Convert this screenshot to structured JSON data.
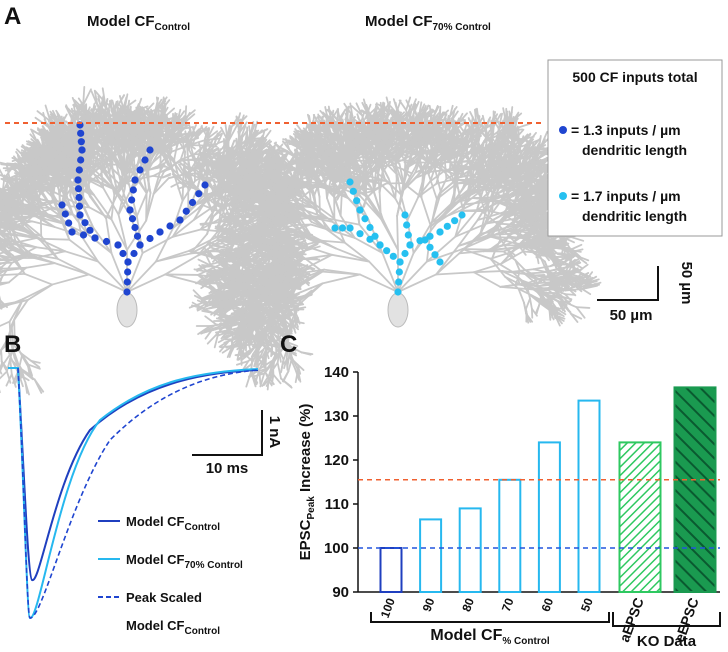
{
  "panel_a": {
    "label": "A",
    "cells": [
      {
        "name": "Model CF",
        "sub": "Control"
      },
      {
        "name": "Model CF",
        "sub": "70% Control"
      }
    ],
    "legend": {
      "title": "500 CF inputs total",
      "items": [
        {
          "line1": "= 1.3 inputs / µm",
          "line2": "dendritic length",
          "color": "#1f45d0"
        },
        {
          "line1": "= 1.7 inputs / µm",
          "line2": "dendritic length",
          "color": "#26c0f0"
        }
      ]
    },
    "scale_y": "50 µm",
    "scale_x": "50 µm"
  },
  "panel_b": {
    "label": "B",
    "scale_y": "1 nA",
    "scale_x": "10 ms",
    "legend": [
      {
        "name": "Model CF",
        "sub": "Control",
        "color": "#1f3fbf",
        "dashed": false
      },
      {
        "name": "Model CF",
        "sub": "70% Control",
        "color": "#26b8ef",
        "dashed": false
      },
      {
        "name": "Peak Scaled",
        "name2": "Model CF",
        "sub": "Control",
        "color": "#1f45d0",
        "dashed": true
      }
    ]
  },
  "chart_data": {
    "type": "bar",
    "label": "C",
    "y_label": {
      "main": "EPSC",
      "sub": "Peak",
      "rest": " Increase (%)"
    },
    "categories": [
      "100",
      "90",
      "80",
      "70",
      "60",
      "50",
      "aEPSC",
      "eEPSC"
    ],
    "values": [
      100,
      106.5,
      109,
      115.5,
      124,
      133.5,
      124,
      136.5
    ],
    "colors": [
      "#1f3fbf",
      "#26b8ef",
      "#26b8ef",
      "#26b8ef",
      "#26b8ef",
      "#26b8ef",
      "#2ec860",
      "#1a9a50"
    ],
    "patterns": [
      "none",
      "none",
      "none",
      "none",
      "none",
      "none",
      "hatch",
      "hatch-dense"
    ],
    "ylim": [
      90,
      140
    ],
    "yticks": [
      90,
      100,
      110,
      120,
      130,
      140
    ],
    "ref_lines": [
      {
        "value": 100,
        "color": "#2255dd"
      },
      {
        "value": 115.5,
        "color": "#f06030"
      }
    ],
    "groups": [
      {
        "name": "Model CF",
        "sub": "% Control",
        "bars": 6
      },
      {
        "name": "KO Data",
        "bars": 2
      }
    ]
  }
}
